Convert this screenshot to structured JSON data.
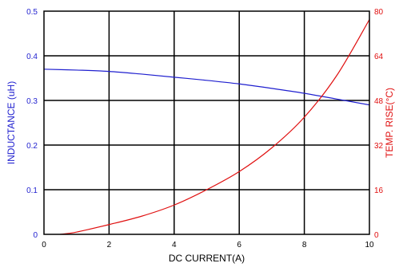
{
  "chart_data": {
    "type": "line",
    "xlabel": "DC CURRENT(A)",
    "xlim": [
      0,
      10
    ],
    "xticks": [
      "0",
      "2",
      "4",
      "6",
      "8",
      "10"
    ],
    "y_left": {
      "label": "INDUCTANCE (uH)",
      "lim": [
        0,
        0.5
      ],
      "ticks": [
        "0",
        "0.1",
        "0.2",
        "0.3",
        "0.4",
        "0.5"
      ],
      "color": "#1f1fcf"
    },
    "y_right": {
      "label": "TEMP. RISE(°C)",
      "lim": [
        0,
        80
      ],
      "ticks": [
        "0",
        "16",
        "32",
        "48",
        "64",
        "80"
      ],
      "color": "#e01010"
    },
    "grid": true,
    "series": [
      {
        "axis": "left",
        "color": "#1f1fcf",
        "x": [
          0,
          1,
          2,
          3,
          4,
          5,
          6,
          7,
          8,
          9,
          10
        ],
        "y": [
          0.37,
          0.368,
          0.365,
          0.359,
          0.352,
          0.345,
          0.337,
          0.327,
          0.316,
          0.303,
          0.29
        ]
      },
      {
        "axis": "right",
        "color": "#e01010",
        "x": [
          0.5,
          1,
          2,
          3,
          4,
          5,
          6,
          7,
          8,
          9,
          10
        ],
        "y": [
          0,
          0.8,
          3.5,
          6.5,
          10.5,
          16,
          22.5,
          31,
          42,
          57,
          77
        ]
      }
    ]
  }
}
